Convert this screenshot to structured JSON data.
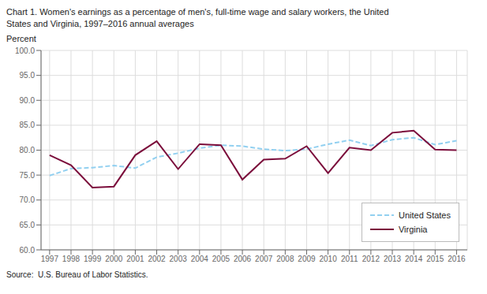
{
  "chart_data": {
    "type": "line",
    "title": "Chart 1. Women's earnings as a percentage of men's, full-time wage and salary workers, the United\nStates and Virginia, 1997–2016 annual averages",
    "y_label": "Percent",
    "annotations": [
      "Source:  U.S. Bureau of Labor Statistics."
    ],
    "x": [
      1997,
      1998,
      1999,
      2000,
      2001,
      2002,
      2003,
      2004,
      2005,
      2006,
      2007,
      2008,
      2009,
      2010,
      2011,
      2012,
      2013,
      2014,
      2015,
      2016
    ],
    "series": [
      {
        "name": "United States",
        "color": "#92d0f0",
        "line_style": "dashed",
        "values": [
          74.9,
          76.3,
          76.5,
          76.9,
          76.4,
          78.6,
          79.4,
          80.4,
          81.0,
          80.8,
          80.2,
          79.9,
          80.2,
          81.2,
          82.0,
          80.9,
          82.1,
          82.5,
          81.1,
          81.9
        ]
      },
      {
        "name": "Virginia",
        "color": "#7b0d3b",
        "line_style": "solid",
        "values": [
          79.0,
          77.0,
          72.5,
          72.7,
          79.0,
          81.8,
          76.2,
          81.2,
          81.0,
          74.1,
          78.1,
          78.3,
          80.8,
          75.4,
          80.5,
          80.0,
          83.5,
          83.9,
          80.1,
          80.0
        ]
      }
    ],
    "xlim": [
      1996.6,
      2016.5
    ],
    "xticks": [
      1997,
      1998,
      1999,
      2000,
      2001,
      2002,
      2003,
      2004,
      2005,
      2006,
      2007,
      2008,
      2009,
      2010,
      2011,
      2012,
      2013,
      2014,
      2015,
      2016
    ],
    "ylim": [
      60.0,
      100.0
    ],
    "yticks": [
      {
        "value": 60,
        "label": "60.0"
      },
      {
        "value": 65,
        "label": "65.0"
      },
      {
        "value": 70,
        "label": "70.0"
      },
      {
        "value": 75,
        "label": "75.0"
      },
      {
        "value": 80,
        "label": "80.0"
      },
      {
        "value": 85,
        "label": "85.0"
      },
      {
        "value": 90,
        "label": "90.0"
      },
      {
        "value": 95,
        "label": "95.0"
      },
      {
        "value": 100,
        "label": "100.0"
      }
    ],
    "grid": true,
    "legend": "lower right"
  }
}
